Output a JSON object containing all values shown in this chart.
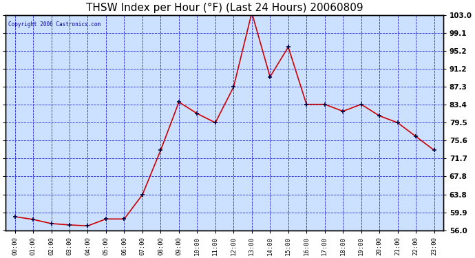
{
  "title": "THSW Index per Hour (°F) (Last 24 Hours) 20060809",
  "copyright": "Copyright 2006 Castronics.com",
  "hours": [
    "00:00",
    "01:00",
    "02:00",
    "03:00",
    "04:00",
    "05:00",
    "06:00",
    "07:00",
    "08:00",
    "09:00",
    "10:00",
    "11:00",
    "12:00",
    "13:00",
    "14:00",
    "15:00",
    "16:00",
    "17:00",
    "18:00",
    "19:00",
    "20:00",
    "21:00",
    "22:00",
    "23:00"
  ],
  "values": [
    59.0,
    58.4,
    57.5,
    57.2,
    57.0,
    58.5,
    58.5,
    63.8,
    73.5,
    84.0,
    81.5,
    79.5,
    87.3,
    103.5,
    89.5,
    96.0,
    83.5,
    83.5,
    82.0,
    83.5,
    81.0,
    79.5,
    76.5,
    73.5
  ],
  "yticks": [
    56.0,
    59.9,
    63.8,
    67.8,
    71.7,
    75.6,
    79.5,
    83.4,
    87.3,
    91.2,
    95.2,
    99.1,
    103.0
  ],
  "line_color": "#cc0000",
  "marker_color": "#000044",
  "fig_bg": "#ffffff",
  "plot_bg": "#cce0ff",
  "grid_color": "#0000cc",
  "title_color": "#000000",
  "copyright_color": "#0000aa",
  "border_color": "#000000",
  "ylim_min": 56.0,
  "ylim_max": 103.0,
  "title_fontsize": 11
}
